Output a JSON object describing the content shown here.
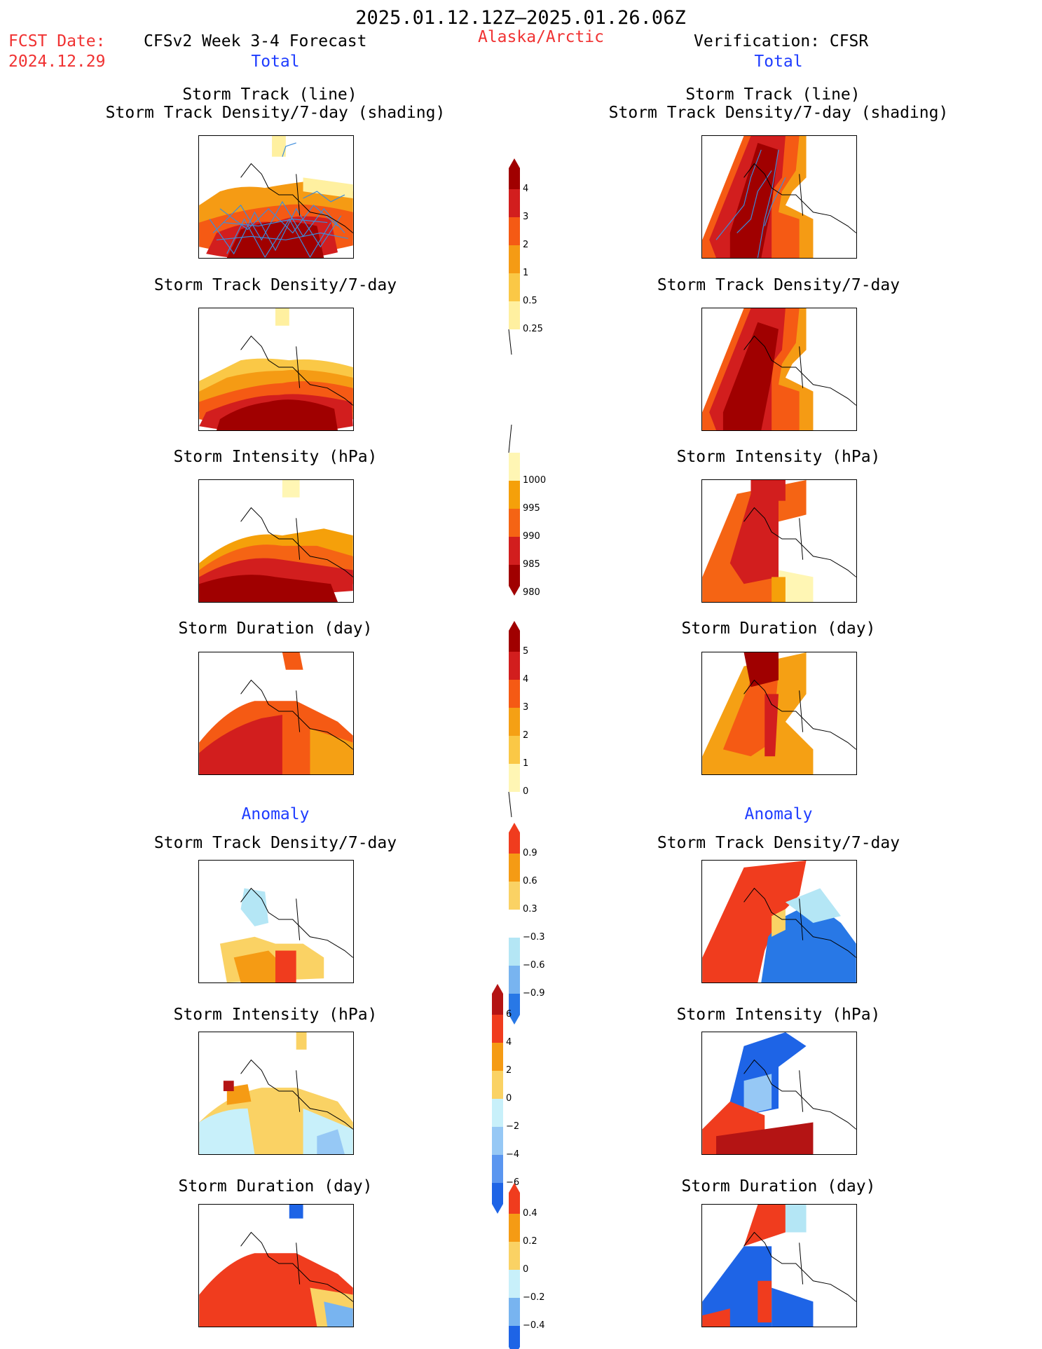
{
  "header": {
    "period": "2025.01.12.12Z–2025.01.26.06Z",
    "fcst_label": "FCST Date:",
    "fcst_date": "2024.12.29",
    "model": "CFSv2 Week 3-4 Forecast",
    "region": "Alaska/Arctic",
    "verification": "Verification: CFSR",
    "left_total": "Total",
    "right_total": "Total"
  },
  "sections": {
    "anomaly_left": "Anomaly",
    "anomaly_right": "Anomaly"
  },
  "panels": {
    "track_title_1": "Storm Track (line)",
    "track_title_2": "Storm Track Density/7-day (shading)",
    "density": "Storm Track Density/7-day",
    "intensity": "Storm Intensity (hPa)",
    "duration": "Storm Duration (day)"
  },
  "colorbars": {
    "density": {
      "labels": [
        "4",
        "3",
        "2",
        "1",
        "0.5",
        "0.25"
      ],
      "colors": [
        "#a00000",
        "#d21e1e",
        "#f55a14",
        "#f59b14",
        "#fac846",
        "#fff0a0"
      ]
    },
    "intensity": {
      "labels": [
        "1000",
        "995",
        "990",
        "985",
        "980"
      ],
      "colors": [
        "#fff6b4",
        "#f5a00a",
        "#f56414",
        "#d21e1e",
        "#a00000"
      ]
    },
    "duration": {
      "labels": [
        "5",
        "4",
        "3",
        "2",
        "1",
        "0"
      ],
      "colors": [
        "#a00000",
        "#d21e1e",
        "#f55a14",
        "#f5a014",
        "#fac846",
        "#fff6b4"
      ]
    },
    "anom_density": {
      "labels": [
        "0.9",
        "0.6",
        "0.3",
        "−0.3",
        "−0.6",
        "−0.9"
      ],
      "colors": [
        "#f03c1e",
        "#f59b14",
        "#fad264",
        "#ffffff",
        "#b4e6f5",
        "#78b4f0",
        "#2878e6"
      ]
    },
    "anom_intensity": {
      "labels": [
        "6",
        "4",
        "2",
        "0",
        "−2",
        "−4",
        "−6"
      ],
      "colors": [
        "#b41414",
        "#f03c1e",
        "#f59b14",
        "#fad264",
        "#c8f0fa",
        "#96c8f5",
        "#5a96f0",
        "#1e64e6"
      ]
    },
    "anom_duration": {
      "labels": [
        "0.4",
        "0.2",
        "0",
        "−0.2",
        "−0.4"
      ],
      "colors": [
        "#f03c1e",
        "#f59b14",
        "#fad264",
        "#c8f0fa",
        "#78b4f0",
        "#1e64e6"
      ]
    }
  }
}
